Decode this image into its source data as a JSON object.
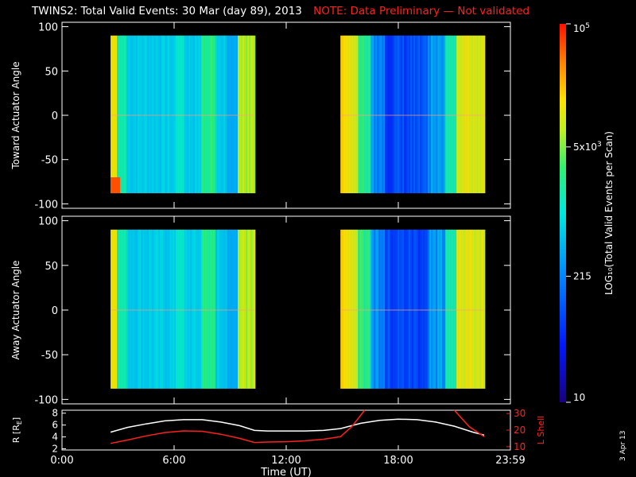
{
  "title": {
    "main": "TWINS2: Total Valid Events: 30 Mar (day  89), 2013",
    "note": "NOTE: Data Preliminary — Not validated"
  },
  "stamp": "3 Apr 13",
  "chart_data": [
    {
      "type": "heatmap",
      "name": "toward",
      "ylabel": "Toward Actuator Angle",
      "ylim": [
        -105,
        105
      ],
      "yticks": [
        100,
        50,
        0,
        -50,
        -100
      ],
      "xlim": [
        0,
        24
      ],
      "x_label": "",
      "data_blocks": [
        {
          "start_hr": 2.6,
          "end_hr": 10.3,
          "ymin": -88,
          "ymax": 90
        },
        {
          "start_hr": 14.9,
          "end_hr": 22.6,
          "ymin": -88,
          "ymax": 90
        }
      ]
    },
    {
      "type": "heatmap",
      "name": "away",
      "ylabel": "Away Actuator Angle",
      "ylim": [
        -105,
        105
      ],
      "yticks": [
        100,
        50,
        0,
        -50,
        -100
      ],
      "xlim": [
        0,
        24
      ],
      "data_blocks": [
        {
          "start_hr": 2.6,
          "end_hr": 10.3,
          "ymin": -88,
          "ymax": 90
        },
        {
          "start_hr": 14.9,
          "end_hr": 22.6,
          "ymin": -88,
          "ymax": 90
        }
      ]
    },
    {
      "type": "line",
      "name": "orbit",
      "ylabel_left": "R [R",
      "ylabel_left_sub": "E",
      "ylabel_left_end": "]",
      "ylabel_right": "L Shell",
      "y_left_ticks": [
        2,
        4,
        6,
        8
      ],
      "y_left_lim": [
        1.8,
        8.5
      ],
      "y_right_ticks": [
        10,
        20,
        30
      ],
      "y_right_lim": [
        8,
        32
      ],
      "series": [
        {
          "color": "#ffffff",
          "x": [
            2.6,
            3.5,
            4.5,
            5.5,
            6.5,
            7.5,
            8.5,
            9.5,
            10.3,
            11,
            12,
            13,
            14,
            14.9,
            16,
            17,
            18,
            19,
            20,
            21,
            22,
            22.6
          ],
          "values": [
            4.8,
            5.6,
            6.2,
            6.7,
            6.9,
            6.9,
            6.5,
            5.9,
            5.1,
            5.0,
            5.0,
            5.0,
            5.1,
            5.4,
            6.3,
            6.8,
            7.0,
            6.9,
            6.5,
            5.8,
            4.8,
            4.3
          ]
        },
        {
          "color": "#ff2020",
          "x": [
            2.6,
            3.5,
            4.5,
            5.5,
            6.5,
            7.5,
            8.5,
            9.5,
            10.3,
            11,
            12,
            13,
            14,
            14.9,
            15.5,
            16.2
          ],
          "values": [
            12,
            14,
            16.5,
            18.5,
            19.5,
            19.3,
            17.5,
            15,
            12.5,
            12.8,
            13,
            13.5,
            14.5,
            16,
            22,
            32
          ]
        },
        {
          "color": "#ff2020",
          "x": [
            21.0,
            21.8,
            22.6
          ],
          "values": [
            32,
            22,
            16
          ]
        }
      ]
    }
  ],
  "x_axis": {
    "ticks": [
      {
        "hr": 0,
        "label": "0:00"
      },
      {
        "hr": 6,
        "label": "6:00"
      },
      {
        "hr": 12,
        "label": "12:00"
      },
      {
        "hr": 18,
        "label": "18:00"
      },
      {
        "hr": 24,
        "label": "23:59"
      }
    ],
    "label": "Time (UT)"
  },
  "colorbar": {
    "label": "LOG₁₀(Total Valid Events per Scan)",
    "ticks": [
      {
        "value": 100000,
        "label": "10",
        "sup": "5"
      },
      {
        "value": 5000,
        "label": "5x10",
        "sup": "3"
      },
      {
        "value": 215,
        "label": "215",
        "sup": ""
      },
      {
        "value": 10,
        "label": "10",
        "sup": ""
      }
    ],
    "min": 10,
    "max": 100000,
    "scale": "log"
  }
}
